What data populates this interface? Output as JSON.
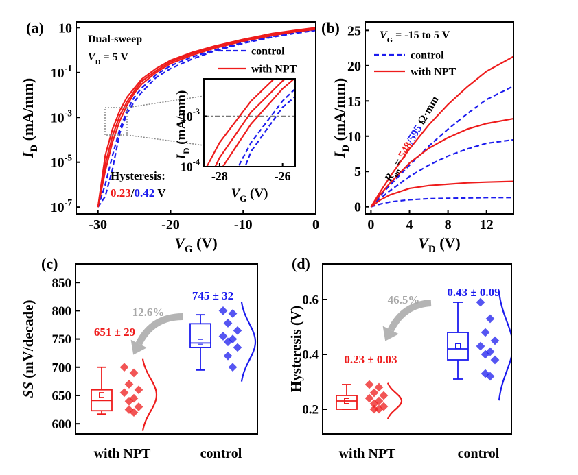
{
  "chart_data": [
    {
      "type": "line",
      "panel": "(a)",
      "ylog": true,
      "xlabel": [
        "V",
        "G",
        " (V)"
      ],
      "ylabel": [
        "I",
        "D",
        " (mA/mm)"
      ],
      "xlim": [
        -33,
        0
      ],
      "xticks": [
        -30,
        -20,
        -10,
        0
      ],
      "ylim": [
        5e-08,
        18
      ],
      "yticks": [
        {
          "value": 1e-07,
          "label": [
            "10",
            "-7"
          ]
        },
        {
          "value": 1e-05,
          "label": [
            "10",
            "-5"
          ]
        },
        {
          "value": 0.001,
          "label": [
            "10",
            "-3"
          ]
        },
        {
          "value": 0.1,
          "label": [
            "10",
            "-1"
          ]
        },
        10
      ],
      "notes": [
        [
          "Dual-sweep"
        ],
        [
          "V",
          "D",
          " = 5 V"
        ]
      ],
      "hysteresis": {
        "title": "Hysteresis:",
        "with_npt": 0.23,
        "separator": "/",
        "control": 0.42,
        "unit": "V"
      },
      "legend": "upper right",
      "x": [
        -30,
        -29,
        -28,
        -27,
        -26,
        -25,
        -24,
        -22,
        -20,
        -17,
        -14,
        -10,
        -6,
        -3,
        0
      ],
      "series": [
        {
          "name": "control",
          "color": "#1c1cee",
          "dashed": true,
          "curves": [
            [
              1e-07,
              1e-06,
              2e-05,
              0.0003,
              0.002,
              0.008,
              0.02,
              0.08,
              0.2,
              0.5,
              1.0,
              2.2,
              4,
              6,
              8
            ],
            [
              1e-07,
              3e-07,
              5e-06,
              0.0002,
              0.0015,
              0.005,
              0.013,
              0.06,
              0.15,
              0.4,
              0.9,
              2,
              3.8,
              5.5,
              7.5
            ]
          ]
        },
        {
          "name": "with NPT",
          "color": "#ee1c1c",
          "dashed": false,
          "curves": [
            [
              1e-07,
              2e-05,
              0.0003,
              0.002,
              0.008,
              0.02,
              0.05,
              0.15,
              0.35,
              0.8,
              1.5,
              3,
              5.5,
              7.5,
              10
            ],
            [
              1e-07,
              8e-06,
              0.00015,
              0.0012,
              0.005,
              0.015,
              0.04,
              0.12,
              0.3,
              0.7,
              1.4,
              2.8,
              5,
              7,
              9
            ],
            [
              1e-07,
              4e-06,
              8e-05,
              0.0007,
              0.0035,
              0.012,
              0.03,
              0.1,
              0.25,
              0.6,
              1.2,
              2.5,
              4.5,
              6.5,
              8.5
            ]
          ]
        }
      ],
      "inset": {
        "xlabel": [
          "V",
          "G",
          " (V)"
        ],
        "ylabel": [
          "I",
          "D",
          " (mA/mm)"
        ],
        "xlim": [
          -28.5,
          -25.6
        ],
        "xticks": [
          -28,
          -26
        ],
        "ylim": [
          0.0001,
          0.0055
        ],
        "yticks": [
          {
            "value": 0.0001,
            "label": [
              "10",
              "-4"
            ]
          },
          {
            "value": 0.001,
            "label": [
              "10",
              "-3"
            ]
          }
        ],
        "hline": 0.001
      }
    },
    {
      "type": "line",
      "panel": "(b)",
      "ylog": false,
      "xlabel": [
        "V",
        "D",
        " (V)"
      ],
      "ylabel": [
        "I",
        "D",
        " (mA/mm)"
      ],
      "xlim": [
        -0.6,
        14.8
      ],
      "xticks": [
        0,
        4,
        8,
        12
      ],
      "ylim": [
        -1,
        26.2
      ],
      "yticks": [
        0,
        5,
        10,
        15,
        20,
        25
      ],
      "notes": [
        [
          "V",
          "G",
          " = -15 to 5 V"
        ]
      ],
      "ron": {
        "symbol": "R",
        "sub": "on",
        "eq": " = ",
        "with_npt": 548,
        "separator": "/",
        "control": 595,
        "unit": " Ω·mm"
      },
      "legend": "upper left",
      "x": [
        0,
        1,
        2,
        4,
        6,
        8,
        10,
        12,
        14.8
      ],
      "series": [
        {
          "name": "control",
          "color": "#1c1cee",
          "dashed": true,
          "curves": [
            [
              0,
              1.6,
              3.1,
              5.9,
              8.6,
              11.0,
              13.2,
              15.2,
              17.1
            ],
            [
              0,
              1.2,
              2.3,
              4.3,
              5.9,
              7.2,
              8.2,
              9.0,
              9.5
            ],
            [
              0,
              0.4,
              0.7,
              1.0,
              1.15,
              1.2,
              1.25,
              1.3,
              1.3
            ]
          ]
        },
        {
          "name": "with NPT",
          "color": "#ee1c1c",
          "dashed": false,
          "curves": [
            [
              0,
              2.2,
              4.3,
              8.2,
              11.6,
              14.5,
              17.0,
              19.2,
              21.3
            ],
            [
              0,
              1.8,
              3.4,
              6.2,
              8.3,
              9.8,
              11.0,
              11.8,
              12.5
            ],
            [
              0,
              1.0,
              1.7,
              2.6,
              3.0,
              3.2,
              3.4,
              3.5,
              3.6
            ]
          ]
        }
      ]
    },
    {
      "type": "box",
      "panel": "(c)",
      "ylabel": [
        "SS",
        " (mV/decade)"
      ],
      "ylim": [
        582,
        883
      ],
      "yticks": [
        600,
        650,
        700,
        750,
        800,
        850
      ],
      "categories": [
        "with NPT",
        "control"
      ],
      "reduction": "12.6%",
      "groups": [
        {
          "color": "#ee1c1c",
          "whisker": [
            617,
            700
          ],
          "box": [
            623,
            660
          ],
          "median": 641,
          "points": [
            700,
            690,
            670,
            660,
            655,
            645,
            640,
            630,
            625,
            620
          ],
          "stats": {
            "mean": 651,
            "sd": 29,
            "label": "651 ± 29"
          }
        },
        {
          "color": "#1c1cee",
          "whisker": [
            695,
            793
          ],
          "box": [
            735,
            777
          ],
          "median": 743,
          "points": [
            800,
            795,
            778,
            765,
            755,
            750,
            745,
            735,
            720,
            700
          ],
          "stats": {
            "mean": 745,
            "sd": 32,
            "label": "745 ± 32"
          }
        }
      ]
    },
    {
      "type": "box",
      "panel": "(d)",
      "ylabel": [
        "Hysteresis (V)"
      ],
      "ylim": [
        0.11,
        0.73
      ],
      "yticks": [
        0.2,
        0.4,
        0.6
      ],
      "categories": [
        "with NPT",
        "control"
      ],
      "reduction": "46.5%",
      "groups": [
        {
          "color": "#ee1c1c",
          "whisker": [
            0.2,
            0.29
          ],
          "box": [
            0.2,
            0.25
          ],
          "median": 0.23,
          "points": [
            0.29,
            0.28,
            0.26,
            0.25,
            0.24,
            0.23,
            0.22,
            0.21,
            0.2,
            0.2
          ],
          "stats": {
            "mean": 0.23,
            "sd": 0.03,
            "label": "0.23 ± 0.03"
          }
        },
        {
          "color": "#1c1cee",
          "whisker": [
            0.31,
            0.59
          ],
          "box": [
            0.38,
            0.48
          ],
          "median": 0.42,
          "points": [
            0.59,
            0.53,
            0.48,
            0.45,
            0.43,
            0.41,
            0.4,
            0.38,
            0.33,
            0.32
          ],
          "stats": {
            "mean": 0.43,
            "sd": 0.09,
            "label": "0.43 ± 0.09"
          }
        }
      ]
    }
  ]
}
